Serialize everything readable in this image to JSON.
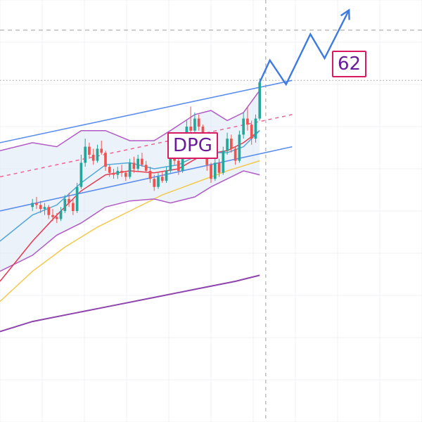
{
  "chart_data": {
    "type": "line",
    "title": "",
    "xlabel": "",
    "ylabel": "",
    "ticker": "DPG",
    "target_label": "62",
    "price_ylim": [
      40.5,
      61.5
    ],
    "x_range": [
      -8,
      96
    ],
    "grid": true,
    "legend": "none",
    "colors": {
      "bullish": "#26a69a",
      "bearish": "#ef5350",
      "channel": "#5b8def",
      "channel_mid": "#f06292",
      "bollinger": "#b05bc4",
      "bollinger_fill": "#dce8f6",
      "ma_fast": "#e63950",
      "ma_short": "#52a7d6",
      "ma_mid": "#f2c94c",
      "ma_long": "#8e44ad",
      "projection": "#3d7be0",
      "label_border": "#d81b60",
      "label_text": "#6a1b9a"
    },
    "candles": [
      [
        51.2,
        51.6,
        51.0,
        51.4
      ],
      [
        51.4,
        51.7,
        51.1,
        51.3
      ],
      [
        51.3,
        51.5,
        50.9,
        51.1
      ],
      [
        51.1,
        51.4,
        50.8,
        51.2
      ],
      [
        51.2,
        51.3,
        50.6,
        50.8
      ],
      [
        50.8,
        51.1,
        50.5,
        50.7
      ],
      [
        50.7,
        50.9,
        50.4,
        50.6
      ],
      [
        50.6,
        51.2,
        50.5,
        51.0
      ],
      [
        51.0,
        51.8,
        50.9,
        51.6
      ],
      [
        51.6,
        51.9,
        51.2,
        51.4
      ],
      [
        51.4,
        51.6,
        50.8,
        51.0
      ],
      [
        51.0,
        52.4,
        50.9,
        52.2
      ],
      [
        52.2,
        53.8,
        52.1,
        53.4
      ],
      [
        53.4,
        54.6,
        53.2,
        54.2
      ],
      [
        54.2,
        54.4,
        53.6,
        53.8
      ],
      [
        53.8,
        54.1,
        53.3,
        53.5
      ],
      [
        53.5,
        54.3,
        53.4,
        54.1
      ],
      [
        54.1,
        54.5,
        53.8,
        53.9
      ],
      [
        53.9,
        54.0,
        53.0,
        53.2
      ],
      [
        53.2,
        53.3,
        52.7,
        52.9
      ],
      [
        52.9,
        53.1,
        52.6,
        52.8
      ],
      [
        52.8,
        53.2,
        52.6,
        53.0
      ],
      [
        53.0,
        53.3,
        52.7,
        52.9
      ],
      [
        52.9,
        53.0,
        52.5,
        52.7
      ],
      [
        52.7,
        53.6,
        52.6,
        53.4
      ],
      [
        53.4,
        53.7,
        52.9,
        53.1
      ],
      [
        53.1,
        53.8,
        53.0,
        53.6
      ],
      [
        53.6,
        53.9,
        53.2,
        53.3
      ],
      [
        53.3,
        53.5,
        52.9,
        53.0
      ],
      [
        53.0,
        53.2,
        52.4,
        52.6
      ],
      [
        52.6,
        52.8,
        52.0,
        52.2
      ],
      [
        52.2,
        52.9,
        52.1,
        52.7
      ],
      [
        52.7,
        53.0,
        52.4,
        52.5
      ],
      [
        52.5,
        53.2,
        52.4,
        53.0
      ],
      [
        53.0,
        54.0,
        52.9,
        53.8
      ],
      [
        53.8,
        54.2,
        53.3,
        53.5
      ],
      [
        53.5,
        53.7,
        52.8,
        53.0
      ],
      [
        53.0,
        54.0,
        52.9,
        53.8
      ],
      [
        53.8,
        55.5,
        53.6,
        55.2
      ],
      [
        55.2,
        56.2,
        54.8,
        55.0
      ],
      [
        55.0,
        55.9,
        54.7,
        55.6
      ],
      [
        55.6,
        55.8,
        55.0,
        55.2
      ],
      [
        55.2,
        55.3,
        53.6,
        53.9
      ],
      [
        53.9,
        54.2,
        53.0,
        53.3
      ],
      [
        53.3,
        53.4,
        52.4,
        52.6
      ],
      [
        52.6,
        53.6,
        52.5,
        53.4
      ],
      [
        53.4,
        53.6,
        52.7,
        52.9
      ],
      [
        52.9,
        54.2,
        52.8,
        54.0
      ],
      [
        54.0,
        54.9,
        53.8,
        54.6
      ],
      [
        54.6,
        54.8,
        53.9,
        54.1
      ],
      [
        54.1,
        54.2,
        53.3,
        53.5
      ],
      [
        53.5,
        55.0,
        53.4,
        54.8
      ],
      [
        54.8,
        55.9,
        54.6,
        55.6
      ],
      [
        55.6,
        56.2,
        55.0,
        55.3
      ],
      [
        55.3,
        55.5,
        54.3,
        54.6
      ],
      [
        54.6,
        55.8,
        54.4,
        55.6
      ],
      [
        55.6,
        57.6,
        55.5,
        57.4
      ]
    ],
    "bollinger_upper": [
      [
        -8,
        54.0
      ],
      [
        0,
        54.4
      ],
      [
        6,
        54.2
      ],
      [
        12,
        55.0
      ],
      [
        18,
        55.0
      ],
      [
        24,
        54.5
      ],
      [
        30,
        54.5
      ],
      [
        34,
        55.0
      ],
      [
        40,
        55.8
      ],
      [
        44,
        56.0
      ],
      [
        48,
        55.5
      ],
      [
        52,
        55.9
      ],
      [
        56,
        57.0
      ]
    ],
    "bollinger_lower": [
      [
        -8,
        48.0
      ],
      [
        0,
        48.8
      ],
      [
        6,
        49.8
      ],
      [
        12,
        50.4
      ],
      [
        18,
        51.2
      ],
      [
        24,
        51.5
      ],
      [
        30,
        51.6
      ],
      [
        34,
        51.4
      ],
      [
        40,
        51.7
      ],
      [
        44,
        52.2
      ],
      [
        48,
        52.6
      ],
      [
        52,
        53.0
      ],
      [
        56,
        52.8
      ]
    ],
    "ma_fast": [
      [
        -8,
        47.5
      ],
      [
        0,
        49.5
      ],
      [
        6,
        50.8
      ],
      [
        12,
        52.0
      ],
      [
        18,
        52.8
      ],
      [
        24,
        53.0
      ],
      [
        30,
        52.9
      ],
      [
        36,
        53.1
      ],
      [
        42,
        53.8
      ],
      [
        48,
        54.0
      ],
      [
        52,
        54.4
      ],
      [
        56,
        55.0
      ]
    ],
    "ma_short": [
      [
        -8,
        49.5
      ],
      [
        0,
        50.8
      ],
      [
        6,
        51.3
      ],
      [
        12,
        52.4
      ],
      [
        18,
        53.3
      ],
      [
        24,
        53.4
      ],
      [
        30,
        53.1
      ],
      [
        36,
        53.3
      ],
      [
        42,
        53.9
      ],
      [
        48,
        53.9
      ],
      [
        52,
        54.2
      ],
      [
        56,
        55.0
      ]
    ],
    "ma_mid": [
      [
        -8,
        46.5
      ],
      [
        0,
        48.0
      ],
      [
        8,
        49.2
      ],
      [
        16,
        50.2
      ],
      [
        24,
        51.0
      ],
      [
        32,
        51.8
      ],
      [
        40,
        52.4
      ],
      [
        48,
        53.0
      ],
      [
        56,
        53.5
      ]
    ],
    "ma_long": [
      [
        -8,
        45.0
      ],
      [
        0,
        45.5
      ],
      [
        10,
        45.9
      ],
      [
        20,
        46.3
      ],
      [
        30,
        46.7
      ],
      [
        40,
        47.1
      ],
      [
        50,
        47.5
      ],
      [
        56,
        47.8
      ]
    ],
    "channel_upper": [
      [
        -8,
        54.4
      ],
      [
        64,
        57.5
      ]
    ],
    "channel_lower": [
      [
        -8,
        51.0
      ],
      [
        64,
        54.2
      ]
    ],
    "channel_mid": [
      [
        -8,
        52.7
      ],
      [
        64,
        55.8
      ]
    ],
    "projection": [
      [
        56,
        57.4
      ],
      [
        58.5,
        58.5
      ],
      [
        62.5,
        57.3
      ],
      [
        68.5,
        59.8
      ],
      [
        72,
        58.6
      ],
      [
        78,
        61.0
      ]
    ],
    "vertical_marker_x": 57.5,
    "level_lines": [
      {
        "value": 60.0,
        "style": "dashed"
      },
      {
        "value": 57.5,
        "style": "dotted"
      }
    ]
  }
}
